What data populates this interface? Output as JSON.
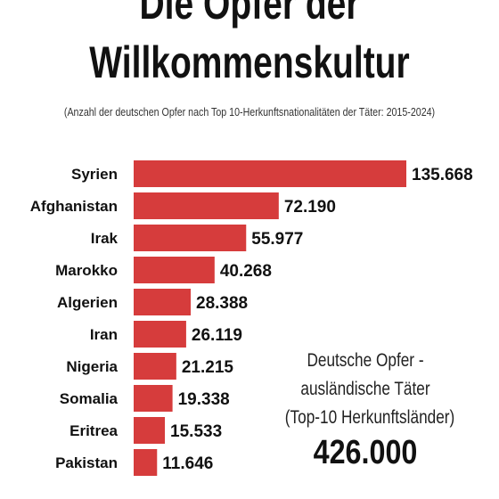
{
  "header": {
    "title_line1": "Die Opfer der",
    "title_line2": "Willkommenskultur",
    "subtitle": "(Anzahl der deutschen Opfer nach Top 10-Herkunftsnationalitäten der Täter: 2015-2024)"
  },
  "chart_data": {
    "type": "bar",
    "orientation": "horizontal",
    "title": "Die Opfer der Willkommenskultur",
    "subtitle": "(Anzahl der deutschen Opfer nach Top 10-Herkunftsnationalitäten der Täter: 2015-2024)",
    "categories": [
      "Syrien",
      "Afghanistan",
      "Irak",
      "Marokko",
      "Algerien",
      "Iran",
      "Nigeria",
      "Somalia",
      "Eritrea",
      "Pakistan"
    ],
    "values": [
      135668,
      72190,
      55977,
      40268,
      28388,
      26119,
      21215,
      19338,
      15533,
      11646
    ],
    "value_labels": [
      "135.668",
      "72.190",
      "55.977",
      "40.268",
      "28.388",
      "26.119",
      "21.215",
      "19.338",
      "15.533",
      "11.646"
    ],
    "bar_color": "#d63c3c",
    "grid": false,
    "axes_visible": false
  },
  "summary": {
    "line1": "Deutsche Opfer -",
    "line2": "ausländische Täter",
    "line3": "(Top-10 Herkunftsländer)",
    "total": "426.000"
  }
}
